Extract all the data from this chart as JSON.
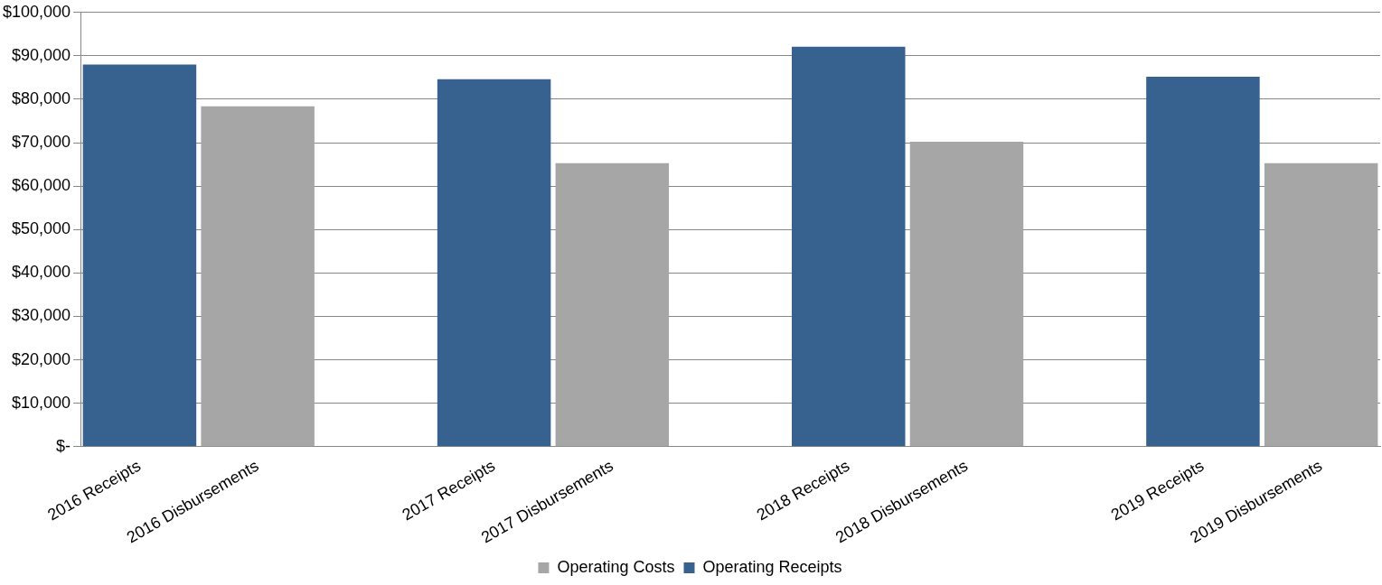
{
  "chart_data": {
    "type": "bar",
    "categories": [
      "2016 Receipts",
      "2016 Disbursements",
      null,
      "2017 Receipts",
      "2017 Disbursements",
      null,
      "2018 Receipts",
      "2018 Disbursements",
      null,
      "2019 Receipts",
      "2019 Disbursements"
    ],
    "series": [
      {
        "name": "Operating Costs",
        "color": "#a6a6a6",
        "values": [
          null,
          78400,
          null,
          null,
          65300,
          null,
          null,
          70200,
          null,
          null,
          65300
        ]
      },
      {
        "name": "Operating Receipts",
        "color": "#37618f",
        "values": [
          88000,
          null,
          null,
          84600,
          null,
          null,
          92100,
          null,
          null,
          85200,
          null
        ]
      }
    ],
    "ylim": [
      0,
      100000
    ],
    "yticks": [
      {
        "value": 0,
        "label": "$-"
      },
      {
        "value": 10000,
        "label": "$10,000"
      },
      {
        "value": 20000,
        "label": "$20,000"
      },
      {
        "value": 30000,
        "label": "$30,000"
      },
      {
        "value": 40000,
        "label": "$40,000"
      },
      {
        "value": 50000,
        "label": "$50,000"
      },
      {
        "value": 60000,
        "label": "$60,000"
      },
      {
        "value": 70000,
        "label": "$70,000"
      },
      {
        "value": 80000,
        "label": "$80,000"
      },
      {
        "value": 90000,
        "label": "$90,000"
      },
      {
        "value": 100000,
        "label": "$100,000"
      }
    ],
    "grid": "y",
    "legend": "bottom"
  }
}
